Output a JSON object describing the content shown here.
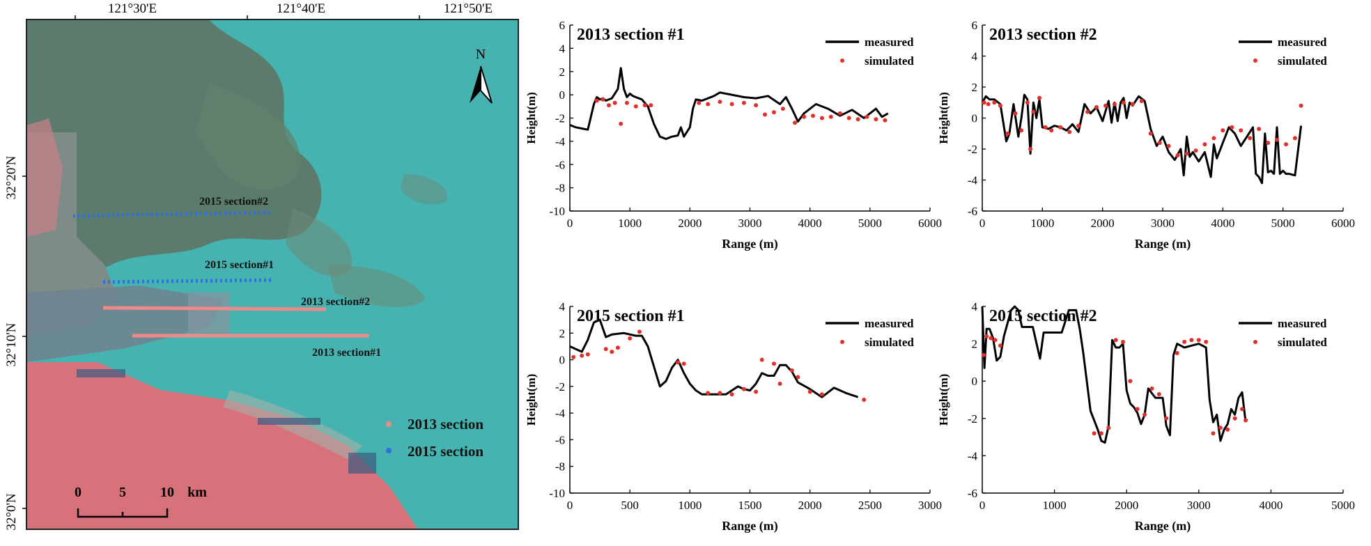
{
  "map": {
    "lon_labels": [
      "121°30'E",
      "121°40'E",
      "121°50'E"
    ],
    "lat_labels": [
      "32°20'N",
      "32°10'N",
      "32°0'N"
    ],
    "north_label": "N",
    "scalebar": {
      "ticks": [
        "0",
        "5",
        "10"
      ],
      "unit": "km"
    },
    "section_labels": [
      "2015 section#2",
      "2015 section#1",
      "2013 section#2",
      "2013 section#1"
    ],
    "legend": [
      {
        "label": "2013 section",
        "color": "#f08a8a"
      },
      {
        "label": "2015 section",
        "color": "#2f6fe0"
      }
    ],
    "colors": {
      "water": "#46b3b0",
      "flats": "#5d7465",
      "urban": "#d8727a",
      "land": "#7d8c88"
    }
  },
  "chart_data": [
    {
      "type": "line",
      "title": "2013 section #1",
      "xlabel": "Range (m)",
      "ylabel": "Height(m)",
      "xlim": [
        0,
        6000
      ],
      "ylim": [
        -10,
        6
      ],
      "xticks": [
        0,
        1000,
        2000,
        3000,
        4000,
        5000,
        6000
      ],
      "yticks": [
        -10,
        -8,
        -6,
        -4,
        -2,
        0,
        2,
        4,
        6
      ],
      "legend": [
        "measured",
        "simulated"
      ],
      "series": [
        {
          "name": "measured",
          "style": "line",
          "color": "#000000",
          "x": [
            0,
            100,
            200,
            300,
            400,
            450,
            500,
            550,
            600,
            700,
            800,
            850,
            900,
            950,
            1000,
            1050,
            1100,
            1200,
            1300,
            1400,
            1500,
            1600,
            1700,
            1800,
            1850,
            1900,
            2000,
            2050,
            2100,
            2200,
            2400,
            2500,
            2700,
            2900,
            3100,
            3300,
            3500,
            3600,
            3700,
            3800,
            3900,
            4100,
            4300,
            4500,
            4700,
            4900,
            5100,
            5200,
            5300
          ],
          "y": [
            -2.6,
            -2.8,
            -2.9,
            -3.0,
            -0.8,
            -0.2,
            -0.4,
            -0.3,
            -0.5,
            -0.3,
            0.5,
            2.3,
            0.5,
            -0.2,
            0.1,
            -0.1,
            -0.2,
            -0.4,
            -1.0,
            -2.5,
            -3.6,
            -3.8,
            -3.6,
            -3.5,
            -2.8,
            -3.6,
            -2.8,
            -1.2,
            -0.4,
            -0.5,
            -0.1,
            0.2,
            0.0,
            -0.2,
            -0.3,
            -0.1,
            -0.8,
            -0.2,
            -1.2,
            -2.3,
            -1.6,
            -0.8,
            -1.2,
            -1.8,
            -1.3,
            -2.0,
            -1.2,
            -1.9,
            -1.6
          ]
        },
        {
          "name": "simulated",
          "style": "points",
          "color": "#e0302a",
          "x": [
            450,
            550,
            650,
            750,
            850,
            950,
            1100,
            1250,
            1350,
            2150,
            2300,
            2500,
            2700,
            2900,
            3100,
            3250,
            3400,
            3550,
            3750,
            3900,
            4050,
            4200,
            4350,
            4500,
            4650,
            4800,
            4950,
            5100,
            5250
          ],
          "y": [
            -0.5,
            -0.4,
            -0.9,
            -0.7,
            -2.5,
            -0.7,
            -1.0,
            -0.9,
            -0.9,
            -0.7,
            -0.8,
            -0.6,
            -0.8,
            -0.7,
            -0.9,
            -1.7,
            -1.5,
            -1.2,
            -2.4,
            -1.9,
            -1.8,
            -2.0,
            -1.9,
            -1.6,
            -2.0,
            -2.1,
            -1.9,
            -2.1,
            -2.2
          ]
        }
      ]
    },
    {
      "type": "line",
      "title": "2013 section #2",
      "xlabel": "Range (m)",
      "ylabel": "Height(m)",
      "xlim": [
        0,
        6000
      ],
      "ylim": [
        -6,
        6
      ],
      "xticks": [
        0,
        1000,
        2000,
        3000,
        4000,
        5000,
        6000
      ],
      "yticks": [
        -6,
        -4,
        -2,
        0,
        2,
        4,
        6
      ],
      "legend": [
        "measured",
        "simulated"
      ],
      "series": [
        {
          "name": "measured",
          "style": "line",
          "color": "#000000",
          "x": [
            0,
            60,
            120,
            200,
            300,
            400,
            450,
            520,
            600,
            650,
            700,
            750,
            800,
            850,
            900,
            950,
            1000,
            1100,
            1200,
            1300,
            1400,
            1500,
            1600,
            1700,
            1800,
            1900,
            2000,
            2100,
            2150,
            2200,
            2250,
            2300,
            2350,
            2400,
            2450,
            2500,
            2600,
            2700,
            2800,
            2900,
            3000,
            3100,
            3200,
            3300,
            3350,
            3400,
            3450,
            3500,
            3600,
            3700,
            3800,
            3850,
            3900,
            4000,
            4100,
            4200,
            4300,
            4400,
            4500,
            4550,
            4600,
            4650,
            4700,
            4750,
            4800,
            4850,
            4900,
            4950,
            5000,
            5050,
            5100,
            5200,
            5300
          ],
          "y": [
            1.0,
            1.4,
            1.2,
            1.2,
            0.9,
            -1.5,
            -1.0,
            0.9,
            -1.2,
            0.0,
            1.5,
            1.2,
            -2.3,
            1.0,
            0.0,
            1.2,
            -0.6,
            -0.7,
            -0.5,
            -0.6,
            -0.8,
            -0.4,
            -0.9,
            0.9,
            0.3,
            0.7,
            -0.2,
            1.1,
            -0.3,
            1.0,
            -0.2,
            1.0,
            1.3,
            0.0,
            1.0,
            0.8,
            1.4,
            1.1,
            -0.7,
            -1.8,
            -1.2,
            -2.2,
            -2.7,
            -2.0,
            -3.7,
            -1.2,
            -2.5,
            -2.2,
            -2.8,
            -2.2,
            -3.8,
            -1.7,
            -2.6,
            -1.6,
            -0.6,
            -1.0,
            -1.8,
            -1.2,
            -0.6,
            -3.6,
            -3.8,
            -4.2,
            -1.0,
            -3.5,
            -3.4,
            -3.6,
            -0.6,
            -3.6,
            -3.4,
            -3.6,
            -3.6,
            -3.7,
            -0.5
          ]
        },
        {
          "name": "simulated",
          "style": "points",
          "color": "#e0302a",
          "x": [
            30,
            100,
            200,
            300,
            420,
            550,
            650,
            750,
            800,
            850,
            950,
            1050,
            1150,
            1300,
            1450,
            1600,
            1750,
            1900,
            2050,
            2200,
            2350,
            2500,
            2650,
            2800,
            2950,
            3100,
            3250,
            3400,
            3550,
            3700,
            3850,
            4000,
            4150,
            4300,
            4450,
            4600,
            4750,
            4900,
            5050,
            5200,
            5300
          ],
          "y": [
            1.0,
            0.9,
            1.0,
            0.8,
            -1.0,
            0.3,
            -0.8,
            1.0,
            -2.0,
            0.4,
            1.3,
            -0.6,
            -0.8,
            -0.6,
            -0.9,
            -0.5,
            0.4,
            0.7,
            0.8,
            0.9,
            1.0,
            0.9,
            1.1,
            -1.0,
            -1.6,
            -1.8,
            -2.4,
            -2.3,
            -2.1,
            -1.7,
            -1.3,
            -0.8,
            -0.6,
            -0.8,
            -1.3,
            -0.7,
            -1.6,
            -1.4,
            -1.7,
            -1.3,
            0.8
          ]
        }
      ]
    },
    {
      "type": "line",
      "title": "2015 section #1",
      "xlabel": "Range (m)",
      "ylabel": "Height(m)",
      "xlim": [
        0,
        3000
      ],
      "ylim": [
        -10,
        4
      ],
      "xticks": [
        0,
        500,
        1000,
        1500,
        2000,
        2500,
        3000
      ],
      "yticks": [
        -10,
        -8,
        -6,
        -4,
        -2,
        0,
        2,
        4
      ],
      "legend": [
        "measured",
        "simulated"
      ],
      "series": [
        {
          "name": "measured",
          "style": "line",
          "color": "#000000",
          "x": [
            0,
            100,
            150,
            200,
            250,
            300,
            350,
            450,
            550,
            600,
            650,
            700,
            750,
            800,
            850,
            900,
            950,
            1000,
            1050,
            1100,
            1200,
            1300,
            1350,
            1400,
            1450,
            1500,
            1550,
            1600,
            1650,
            1700,
            1750,
            1800,
            1850,
            1900,
            2000,
            2100,
            2200,
            2300,
            2400
          ],
          "y": [
            1.0,
            0.6,
            1.5,
            2.8,
            3.0,
            1.7,
            1.9,
            2.0,
            1.8,
            1.8,
            1.0,
            -0.5,
            -2.0,
            -1.6,
            -0.6,
            0.0,
            -1.0,
            -1.8,
            -2.3,
            -2.6,
            -2.6,
            -2.6,
            -2.3,
            -2.0,
            -2.2,
            -2.3,
            -1.8,
            -1.0,
            -1.2,
            -1.2,
            -0.4,
            -0.4,
            -0.9,
            -1.7,
            -2.2,
            -2.8,
            -2.1,
            -2.5,
            -2.8
          ]
        },
        {
          "name": "simulated",
          "style": "points",
          "color": "#e0302a",
          "x": [
            30,
            100,
            150,
            300,
            350,
            400,
            500,
            580,
            900,
            950,
            1150,
            1250,
            1350,
            1450,
            1550,
            1600,
            1700,
            1750,
            1850,
            1900,
            2000,
            2100,
            2450
          ],
          "y": [
            0.2,
            0.3,
            0.4,
            0.8,
            0.6,
            0.9,
            1.6,
            2.1,
            -0.2,
            -0.3,
            -2.5,
            -2.5,
            -2.6,
            -2.2,
            -2.4,
            0.0,
            -0.3,
            -1.8,
            -0.8,
            -1.3,
            -2.4,
            -2.6,
            -3.0
          ]
        }
      ]
    },
    {
      "type": "line",
      "title": "2015 section #2",
      "xlabel": "Range (m)",
      "ylabel": "Height(m)",
      "xlim": [
        0,
        5000
      ],
      "ylim": [
        -6,
        4
      ],
      "xticks": [
        0,
        1000,
        2000,
        3000,
        4000,
        5000
      ],
      "yticks": [
        -6,
        -4,
        -2,
        0,
        2,
        4
      ],
      "legend": [
        "measured",
        "simulated"
      ],
      "series": [
        {
          "name": "measured",
          "style": "line",
          "color": "#000000",
          "x": [
            0,
            30,
            60,
            100,
            150,
            200,
            250,
            300,
            400,
            450,
            500,
            550,
            600,
            700,
            800,
            850,
            900,
            1000,
            1100,
            1200,
            1300,
            1350,
            1400,
            1500,
            1600,
            1650,
            1700,
            1750,
            1800,
            1850,
            1900,
            1950,
            2000,
            2050,
            2100,
            2150,
            2200,
            2250,
            2300,
            2400,
            2500,
            2550,
            2600,
            2650,
            2700,
            2750,
            2800,
            2900,
            3000,
            3100,
            3150,
            3200,
            3250,
            3300,
            3350,
            3400,
            3450,
            3500,
            3550,
            3600,
            3650
          ],
          "y": [
            4.0,
            0.7,
            2.8,
            2.8,
            2.3,
            1.1,
            1.3,
            2.4,
            3.8,
            4.0,
            3.8,
            2.9,
            2.9,
            2.9,
            1.2,
            2.6,
            2.6,
            2.6,
            2.6,
            3.8,
            3.8,
            2.8,
            1.5,
            -1.6,
            -2.6,
            -3.2,
            -3.3,
            -2.4,
            2.2,
            1.8,
            1.8,
            2.0,
            -0.5,
            -1.2,
            -1.4,
            -1.7,
            -2.3,
            -1.8,
            -0.4,
            -0.9,
            -0.9,
            -2.4,
            -2.9,
            1.4,
            2.0,
            1.9,
            1.8,
            1.9,
            2.0,
            1.8,
            -1.0,
            -2.2,
            -1.8,
            -3.2,
            -2.6,
            -2.3,
            -1.5,
            -1.8,
            -0.9,
            -0.6,
            -2.2
          ]
        },
        {
          "name": "simulated",
          "style": "points",
          "color": "#e0302a",
          "x": [
            20,
            60,
            120,
            180,
            250,
            1550,
            1650,
            1750,
            1850,
            1950,
            2050,
            2150,
            2250,
            2350,
            2450,
            2550,
            2700,
            2800,
            2900,
            3000,
            3100,
            3200,
            3300,
            3400,
            3500,
            3600,
            3650
          ],
          "y": [
            1.4,
            2.4,
            2.3,
            2.2,
            1.9,
            -2.8,
            -2.8,
            -2.5,
            2.2,
            2.1,
            0.0,
            -1.5,
            -1.8,
            -0.4,
            -0.7,
            -2.0,
            1.5,
            2.1,
            2.2,
            2.2,
            2.1,
            -2.8,
            -2.5,
            -2.6,
            -2.0,
            -1.5,
            -2.1
          ]
        }
      ]
    }
  ]
}
